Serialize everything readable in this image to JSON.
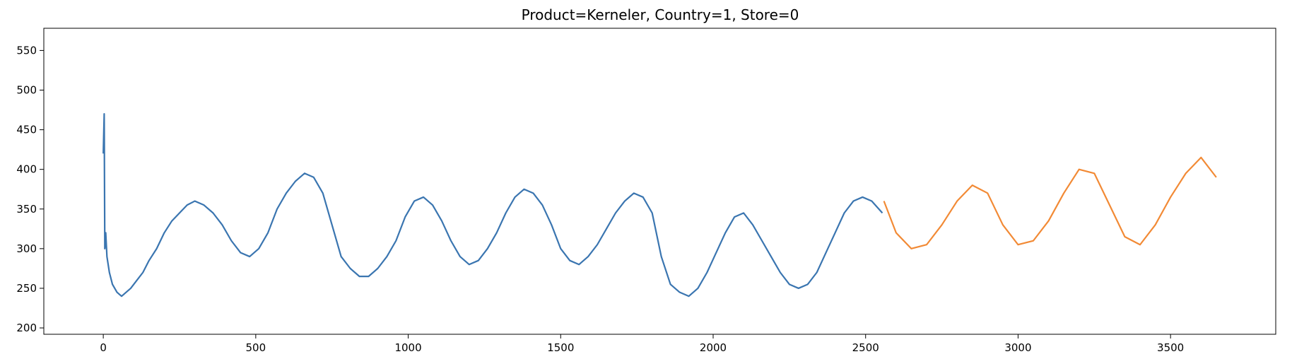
{
  "chart_data": {
    "type": "line",
    "title": "Product=Kerneler, Country=1, Store=0",
    "xlabel": "",
    "ylabel": "",
    "xlim": [
      -195,
      3845
    ],
    "ylim": [
      192,
      578
    ],
    "x_ticks": [
      0,
      500,
      1000,
      1500,
      2000,
      2500,
      3000,
      3500
    ],
    "y_ticks": [
      200,
      250,
      300,
      350,
      400,
      450,
      500,
      550
    ],
    "grid": false,
    "legend": "none",
    "series": [
      {
        "color": "#3a75b0",
        "x": [
          0,
          3,
          5,
          8,
          12,
          20,
          30,
          45,
          60,
          75,
          90,
          110,
          130,
          150,
          175,
          200,
          225,
          250,
          275,
          300,
          330,
          360,
          390,
          420,
          450,
          480,
          510,
          540,
          570,
          600,
          630,
          660,
          690,
          720,
          750,
          780,
          810,
          840,
          870,
          900,
          930,
          960,
          990,
          1020,
          1050,
          1080,
          1110,
          1140,
          1170,
          1200,
          1230,
          1260,
          1290,
          1320,
          1350,
          1380,
          1410,
          1440,
          1470,
          1500,
          1530,
          1560,
          1590,
          1620,
          1650,
          1680,
          1710,
          1740,
          1770,
          1800,
          1830,
          1860,
          1890,
          1920,
          1950,
          1980,
          2010,
          2040,
          2070,
          2100,
          2130,
          2160,
          2190,
          2220,
          2250,
          2280,
          2310,
          2340,
          2370,
          2400,
          2430,
          2460,
          2490,
          2520,
          2555
        ],
        "y": [
          420,
          470,
          300,
          320,
          290,
          270,
          255,
          245,
          240,
          245,
          250,
          260,
          270,
          285,
          300,
          320,
          335,
          345,
          355,
          360,
          355,
          345,
          330,
          310,
          295,
          290,
          300,
          320,
          350,
          370,
          385,
          395,
          390,
          370,
          330,
          290,
          275,
          265,
          265,
          275,
          290,
          310,
          340,
          360,
          365,
          355,
          335,
          310,
          290,
          280,
          285,
          300,
          320,
          345,
          365,
          375,
          370,
          355,
          330,
          300,
          285,
          280,
          290,
          305,
          325,
          345,
          360,
          370,
          365,
          345,
          290,
          255,
          245,
          240,
          250,
          270,
          295,
          320,
          340,
          345,
          330,
          310,
          290,
          270,
          255,
          250,
          255,
          270,
          295,
          320,
          345,
          360,
          365,
          360,
          345
        ]
      },
      {
        "color": "#f28a35",
        "x": [
          2560,
          2600,
          2650,
          2700,
          2750,
          2800,
          2850,
          2900,
          2950,
          3000,
          3050,
          3100,
          3150,
          3200,
          3250,
          3300,
          3350,
          3400,
          3450,
          3500,
          3550,
          3600,
          3650
        ],
        "y": [
          360,
          320,
          300,
          305,
          330,
          360,
          380,
          370,
          330,
          305,
          310,
          335,
          370,
          400,
          395,
          355,
          315,
          305,
          330,
          365,
          395,
          415,
          390
        ]
      }
    ]
  }
}
